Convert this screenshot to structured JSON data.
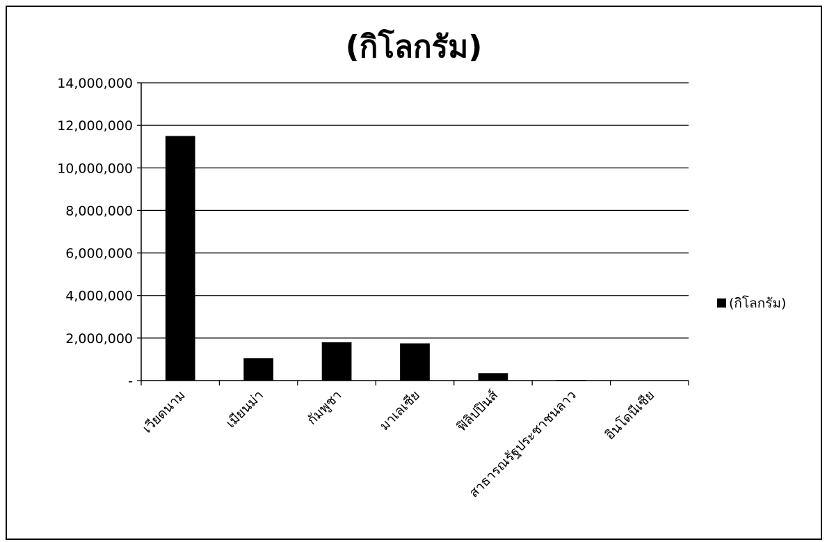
{
  "chart_data": {
    "type": "bar",
    "title": "(กิโลกรัม)",
    "categories": [
      "เวียดนาม",
      "เมียนม่า",
      "กัมพูชา",
      "มาเลเซีย",
      "ฟิลิปปินส์",
      "สาธารณรัฐประชาชนลาว",
      "อินโดนีเซีย"
    ],
    "series": [
      {
        "name": "(กิโลกรัม)",
        "values": [
          11500000,
          1050000,
          1800000,
          1750000,
          350000,
          30000,
          10000
        ]
      }
    ],
    "y_ticks": [
      "-",
      "2,000,000",
      "4,000,000",
      "6,000,000",
      "8,000,000",
      "10,000,000",
      "12,000,000",
      "14,000,000"
    ],
    "ylim": [
      0,
      14000000
    ],
    "grid": true,
    "legend_position": "right",
    "bar_color": "#000000"
  }
}
